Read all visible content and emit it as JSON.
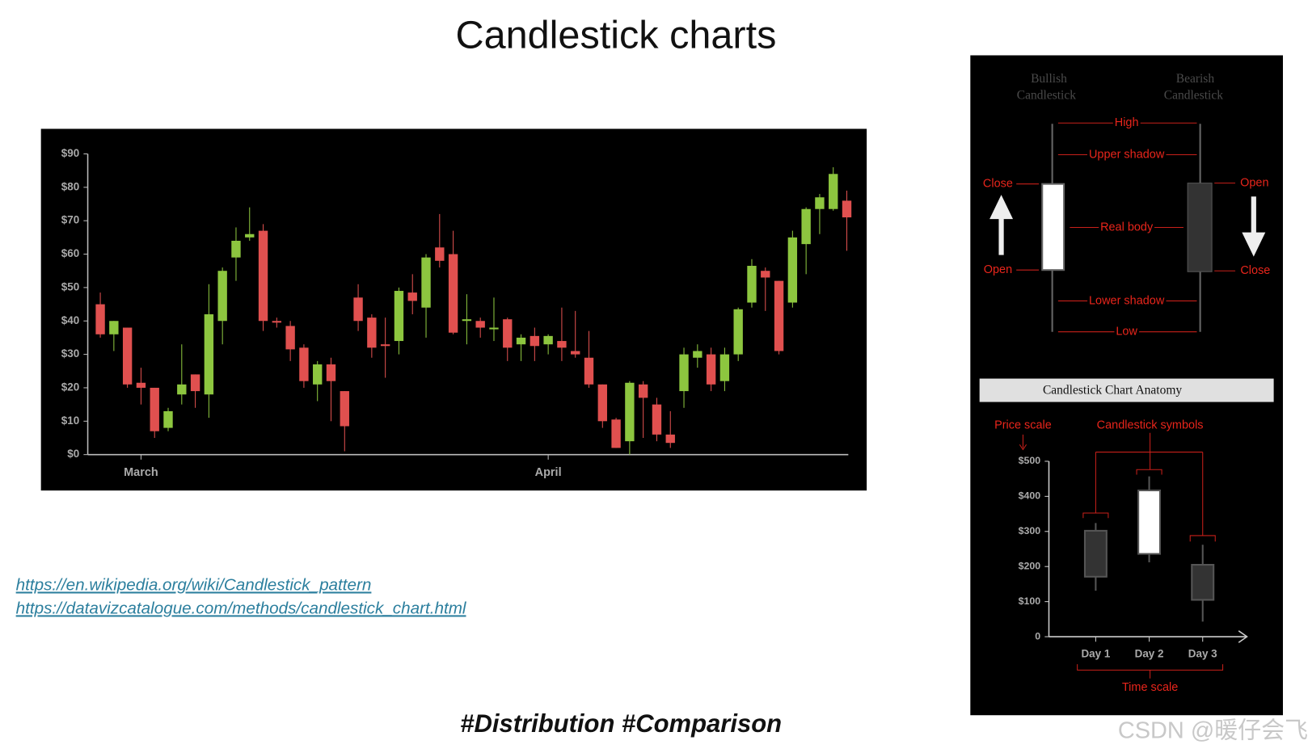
{
  "title": "Candlestick charts",
  "links": [
    "https://en.wikipedia.org/wiki/Candlestick_pattern",
    "https://datavizcatalogue.com/methods/candlestick_chart.html"
  ],
  "hashtags": "#Distribution #Comparison",
  "watermark": "CSDN @暖仔会飞",
  "anatomy": {
    "bullish_label": [
      "Bullish",
      "Candlestick"
    ],
    "bearish_label": [
      "Bearish",
      "Candlestick"
    ],
    "parts": [
      "High",
      "Upper shadow",
      "Real body",
      "Lower shadow",
      "Low"
    ],
    "bullish_close": "Close",
    "bullish_open": "Open",
    "bearish_open": "Open",
    "bearish_close": "Close",
    "caption": "Candlestick Chart Anatomy"
  },
  "chart_data": [
    {
      "type": "candlestick",
      "categories": [
        null,
        null,
        null,
        "March",
        null,
        null,
        null,
        null,
        null,
        null,
        null,
        null,
        null,
        null,
        null,
        null,
        null,
        null,
        null,
        null,
        null,
        null,
        null,
        null,
        null,
        null,
        null,
        null,
        null,
        null,
        null,
        null,
        null,
        "April",
        null,
        null,
        null,
        null,
        null,
        null,
        null,
        null,
        null,
        null,
        null,
        null,
        null,
        null,
        null,
        null,
        null,
        null,
        null,
        null,
        null,
        null
      ],
      "open": [
        45,
        36,
        38,
        21.5,
        20,
        8,
        18,
        24,
        18,
        40,
        59,
        65,
        67,
        40,
        38.5,
        32,
        21,
        27,
        19,
        47,
        41,
        33,
        34,
        48.5,
        44,
        62,
        60,
        40,
        40,
        37.5,
        40.5,
        33,
        35.5,
        33,
        34,
        31,
        29,
        21,
        10.5,
        4,
        21,
        15,
        6,
        19,
        29,
        30,
        22,
        30,
        45.5,
        55,
        52,
        45.5,
        63,
        73.5,
        73.5,
        76
      ],
      "high": [
        48.5,
        40,
        38,
        26,
        20,
        14,
        33,
        24,
        51,
        56,
        68,
        74,
        69,
        41,
        40,
        33,
        28,
        29,
        19,
        51,
        42,
        41,
        50,
        54,
        60,
        72,
        67,
        48,
        41,
        47,
        41,
        36,
        38,
        36,
        44,
        43,
        37,
        21,
        11,
        22,
        22,
        17,
        13,
        32,
        33,
        32,
        32,
        44,
        58.5,
        56,
        52,
        67,
        74,
        78,
        86,
        79
      ],
      "low": [
        35,
        31,
        20,
        15,
        5,
        7,
        15,
        14,
        11,
        33,
        52,
        64,
        37,
        38,
        28,
        20,
        16,
        10,
        1,
        37,
        29,
        23,
        30,
        42,
        35,
        56,
        36,
        33,
        35,
        34,
        28,
        28,
        28,
        30,
        28,
        29,
        20,
        8,
        2,
        0,
        5,
        4,
        2,
        14,
        26,
        19,
        19,
        28,
        44,
        43,
        30,
        44,
        54,
        66,
        73,
        61
      ],
      "close": [
        36,
        40,
        21,
        20,
        7,
        13,
        21,
        19,
        42,
        55,
        64,
        66,
        40,
        39.5,
        31.5,
        22,
        27,
        22,
        8.5,
        40,
        32,
        32.5,
        49,
        46,
        59,
        58,
        36.5,
        40.5,
        38,
        38,
        32,
        35,
        32.5,
        35.5,
        32,
        30,
        21,
        10,
        2,
        21.5,
        17,
        6,
        3.5,
        30,
        31,
        21,
        30,
        43.5,
        56.5,
        53,
        31,
        65,
        73.5,
        77,
        84,
        71
      ],
      "up_color": "#8dc63f",
      "down_color": "#e0504f",
      "ylim": [
        0,
        90
      ],
      "yticks": [
        {
          "value": 0,
          "label": "$0"
        },
        {
          "value": 10,
          "label": "$10"
        },
        {
          "value": 20,
          "label": "$20"
        },
        {
          "value": 30,
          "label": "$30"
        },
        {
          "value": 40,
          "label": "$40"
        },
        {
          "value": 50,
          "label": "$50"
        },
        {
          "value": 60,
          "label": "$60"
        },
        {
          "value": 70,
          "label": "$70"
        },
        {
          "value": 80,
          "label": "$80"
        },
        {
          "value": 90,
          "label": "$90"
        }
      ]
    },
    {
      "type": "candlestick",
      "categories": [
        "Day 1",
        "Day 2",
        "Day 3"
      ],
      "open": [
        302,
        236,
        205
      ],
      "high": [
        324,
        457,
        262
      ],
      "low": [
        131,
        212,
        43
      ],
      "close": [
        171,
        417,
        105
      ],
      "up_color": "#ffffff",
      "down_color": "#333333",
      "ylim": [
        0,
        500
      ],
      "yticks": [
        0,
        {
          "value": 100,
          "label": "$100"
        },
        {
          "value": 200,
          "label": "$200"
        },
        {
          "value": 300,
          "label": "$300"
        },
        {
          "value": 400,
          "label": "$400"
        },
        {
          "value": 500,
          "label": "$500"
        }
      ],
      "annotations": [
        "Price scale",
        "Candlestick symbols",
        "Time scale"
      ]
    }
  ]
}
